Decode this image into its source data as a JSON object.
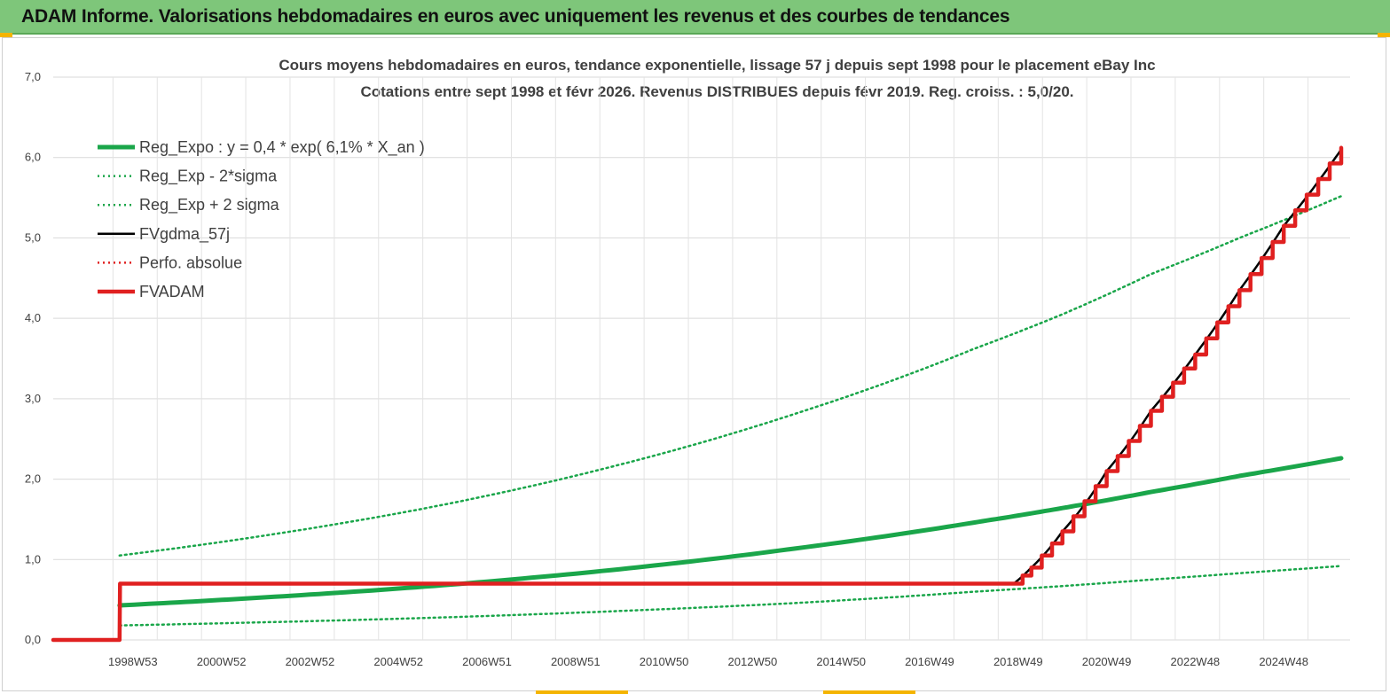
{
  "header": {
    "banner": "ADAM Informe. Valorisations hebdomadaires en euros avec uniquement les revenus et des courbes de tendances"
  },
  "chart_data": {
    "type": "line",
    "title": "Cours moyens  hebdomadaires en euros, tendance exponentielle, lissage 57 j depuis sept 1998 pour le placement eBay Inc",
    "subtitle": "Cotations entre sept 1998 et févr 2026.  Revenus DISTRIBUES depuis févr 2019.  Reg. croiss. : 5,0/20.",
    "xlabel": "",
    "ylabel": "",
    "ylim": [
      0,
      7
    ],
    "yticks": [
      "0,0",
      "1,0",
      "2,0",
      "3,0",
      "4,0",
      "5,0",
      "6,0",
      "7,0"
    ],
    "xticks": [
      "1998W53",
      "2000W52",
      "2002W52",
      "2004W52",
      "2006W51",
      "2008W51",
      "2010W50",
      "2012W50",
      "2014W50",
      "2016W49",
      "2018W49",
      "2020W49",
      "2022W48",
      "2024W48"
    ],
    "xlim": [
      1997.2,
      2026.5
    ],
    "grid": true,
    "legend_position": "top-left",
    "series": [
      {
        "name": "Reg_Expo : y = 0,4 * exp( 6,1% *  X_an )",
        "color": "#1aa64a",
        "style": "solid-thick",
        "x": [
          1998.7,
          2002,
          2006,
          2010,
          2014,
          2018,
          2020,
          2022,
          2024,
          2026.3
        ],
        "y": [
          0.43,
          0.53,
          0.68,
          0.88,
          1.14,
          1.46,
          1.64,
          1.84,
          2.04,
          2.26
        ]
      },
      {
        "name": "Reg_Exp - 2*sigma",
        "color": "#1aa64a",
        "style": "dotted",
        "x": [
          1998.7,
          2002,
          2006,
          2010,
          2014,
          2018,
          2020,
          2022,
          2024,
          2026.3
        ],
        "y": [
          0.18,
          0.22,
          0.28,
          0.36,
          0.46,
          0.6,
          0.67,
          0.75,
          0.83,
          0.92
        ]
      },
      {
        "name": "Reg_Exp + 2 sigma",
        "color": "#1aa64a",
        "style": "dotted",
        "x": [
          1998.7,
          2002,
          2006,
          2010,
          2014,
          2018,
          2020,
          2022,
          2024,
          2026.3
        ],
        "y": [
          1.05,
          1.3,
          1.68,
          2.18,
          2.82,
          3.62,
          4.05,
          4.55,
          5.0,
          5.52
        ]
      },
      {
        "name": "FVgdma_57j",
        "color": "#000000",
        "style": "solid",
        "x": [
          1997.2,
          1998.7,
          1998.71,
          2018.9,
          2019.3,
          2020,
          2021,
          2022,
          2023,
          2024,
          2025,
          2026.3
        ],
        "y": [
          0.0,
          0.0,
          0.7,
          0.7,
          0.9,
          1.35,
          2.1,
          2.85,
          3.55,
          4.35,
          5.15,
          6.1
        ]
      },
      {
        "name": "Perfo. absolue",
        "color": "#e02020",
        "style": "dotted",
        "x": [],
        "y": []
      },
      {
        "name": "FVADAM",
        "color": "#e02020",
        "style": "solid-thick-step",
        "x": [
          1997.2,
          1998.7,
          1998.71,
          2018.9,
          2019.3,
          2020,
          2021,
          2022,
          2023,
          2024,
          2025,
          2026.3
        ],
        "y": [
          0.0,
          0.0,
          0.7,
          0.7,
          0.9,
          1.35,
          2.1,
          2.85,
          3.55,
          4.35,
          5.15,
          6.12
        ]
      }
    ]
  }
}
